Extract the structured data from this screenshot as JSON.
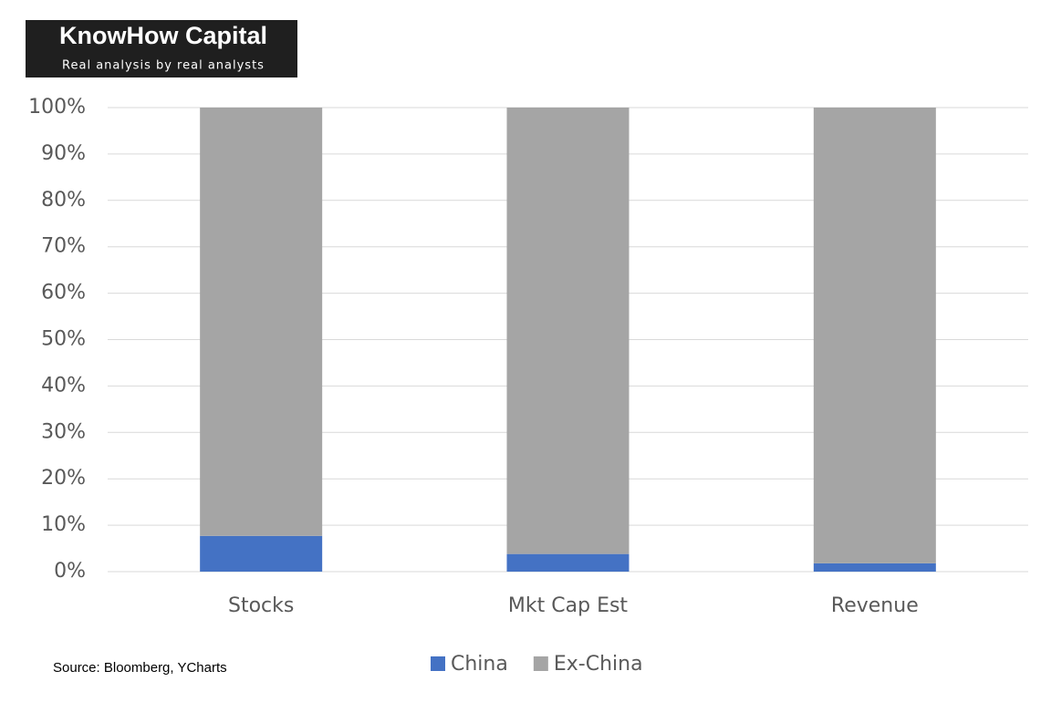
{
  "logo": {
    "name": "KnowHow Capital",
    "tagline": "Real analysis by real analysts"
  },
  "chart_data": {
    "type": "stacked_bar",
    "categories": [
      "Stocks",
      "Mkt Cap Est",
      "Revenue"
    ],
    "series": [
      {
        "name": "China",
        "color": "#4472c4",
        "values": [
          7.7,
          3.8,
          1.8
        ]
      },
      {
        "name": "Ex-China",
        "color": "#a5a5a5",
        "values": [
          92.3,
          96.2,
          98.2
        ]
      }
    ],
    "ylim": [
      0,
      100
    ],
    "yticks": [
      {
        "value": 0,
        "label": "0%"
      },
      {
        "value": 10,
        "label": "10%"
      },
      {
        "value": 20,
        "label": "20%"
      },
      {
        "value": 30,
        "label": "30%"
      },
      {
        "value": 40,
        "label": "40%"
      },
      {
        "value": 50,
        "label": "50%"
      },
      {
        "value": 60,
        "label": "60%"
      },
      {
        "value": 70,
        "label": "70%"
      },
      {
        "value": 80,
        "label": "80%"
      },
      {
        "value": 90,
        "label": "90%"
      },
      {
        "value": 100,
        "label": "100%"
      }
    ],
    "grid": true,
    "legend": "bottom",
    "source": "Source: Bloomberg, YCharts"
  }
}
